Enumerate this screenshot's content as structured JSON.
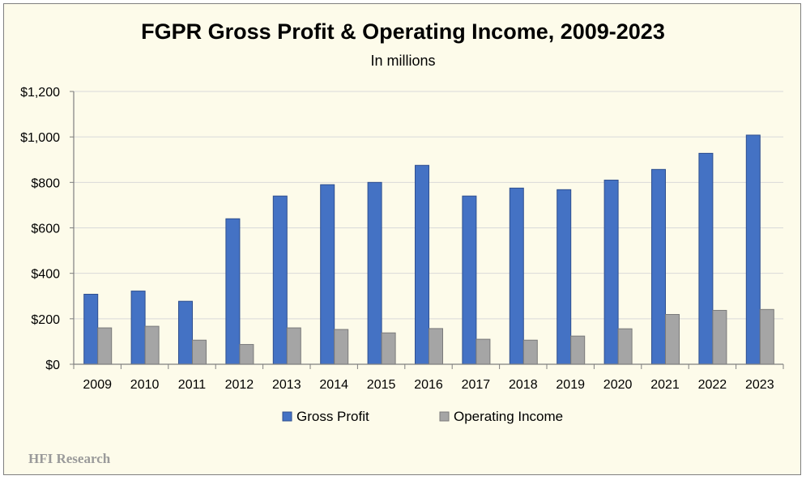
{
  "chart_data": {
    "type": "bar",
    "title": "FGPR Gross Profit & Operating Income, 2009-2023",
    "subtitle": "In millions",
    "categories": [
      "2009",
      "2010",
      "2011",
      "2012",
      "2013",
      "2014",
      "2015",
      "2016",
      "2017",
      "2018",
      "2019",
      "2020",
      "2021",
      "2022",
      "2023"
    ],
    "series": [
      {
        "name": "Gross Profit",
        "color": "#4472c4",
        "values": [
          308,
          322,
          277,
          640,
          740,
          790,
          800,
          875,
          740,
          775,
          768,
          810,
          857,
          928,
          1008
        ]
      },
      {
        "name": "Operating Income",
        "color": "#a5a5a5",
        "values": [
          160,
          167,
          106,
          87,
          160,
          153,
          138,
          157,
          110,
          106,
          124,
          156,
          219,
          237,
          241
        ]
      }
    ],
    "ylim": [
      0,
      1200
    ],
    "yticks": [
      "$0",
      "$200",
      "$400",
      "$600",
      "$800",
      "$1,000",
      "$1,200"
    ],
    "xlabel": "",
    "ylabel": "",
    "grid": true,
    "legend": "bottom"
  },
  "watermark": "HFI Research"
}
